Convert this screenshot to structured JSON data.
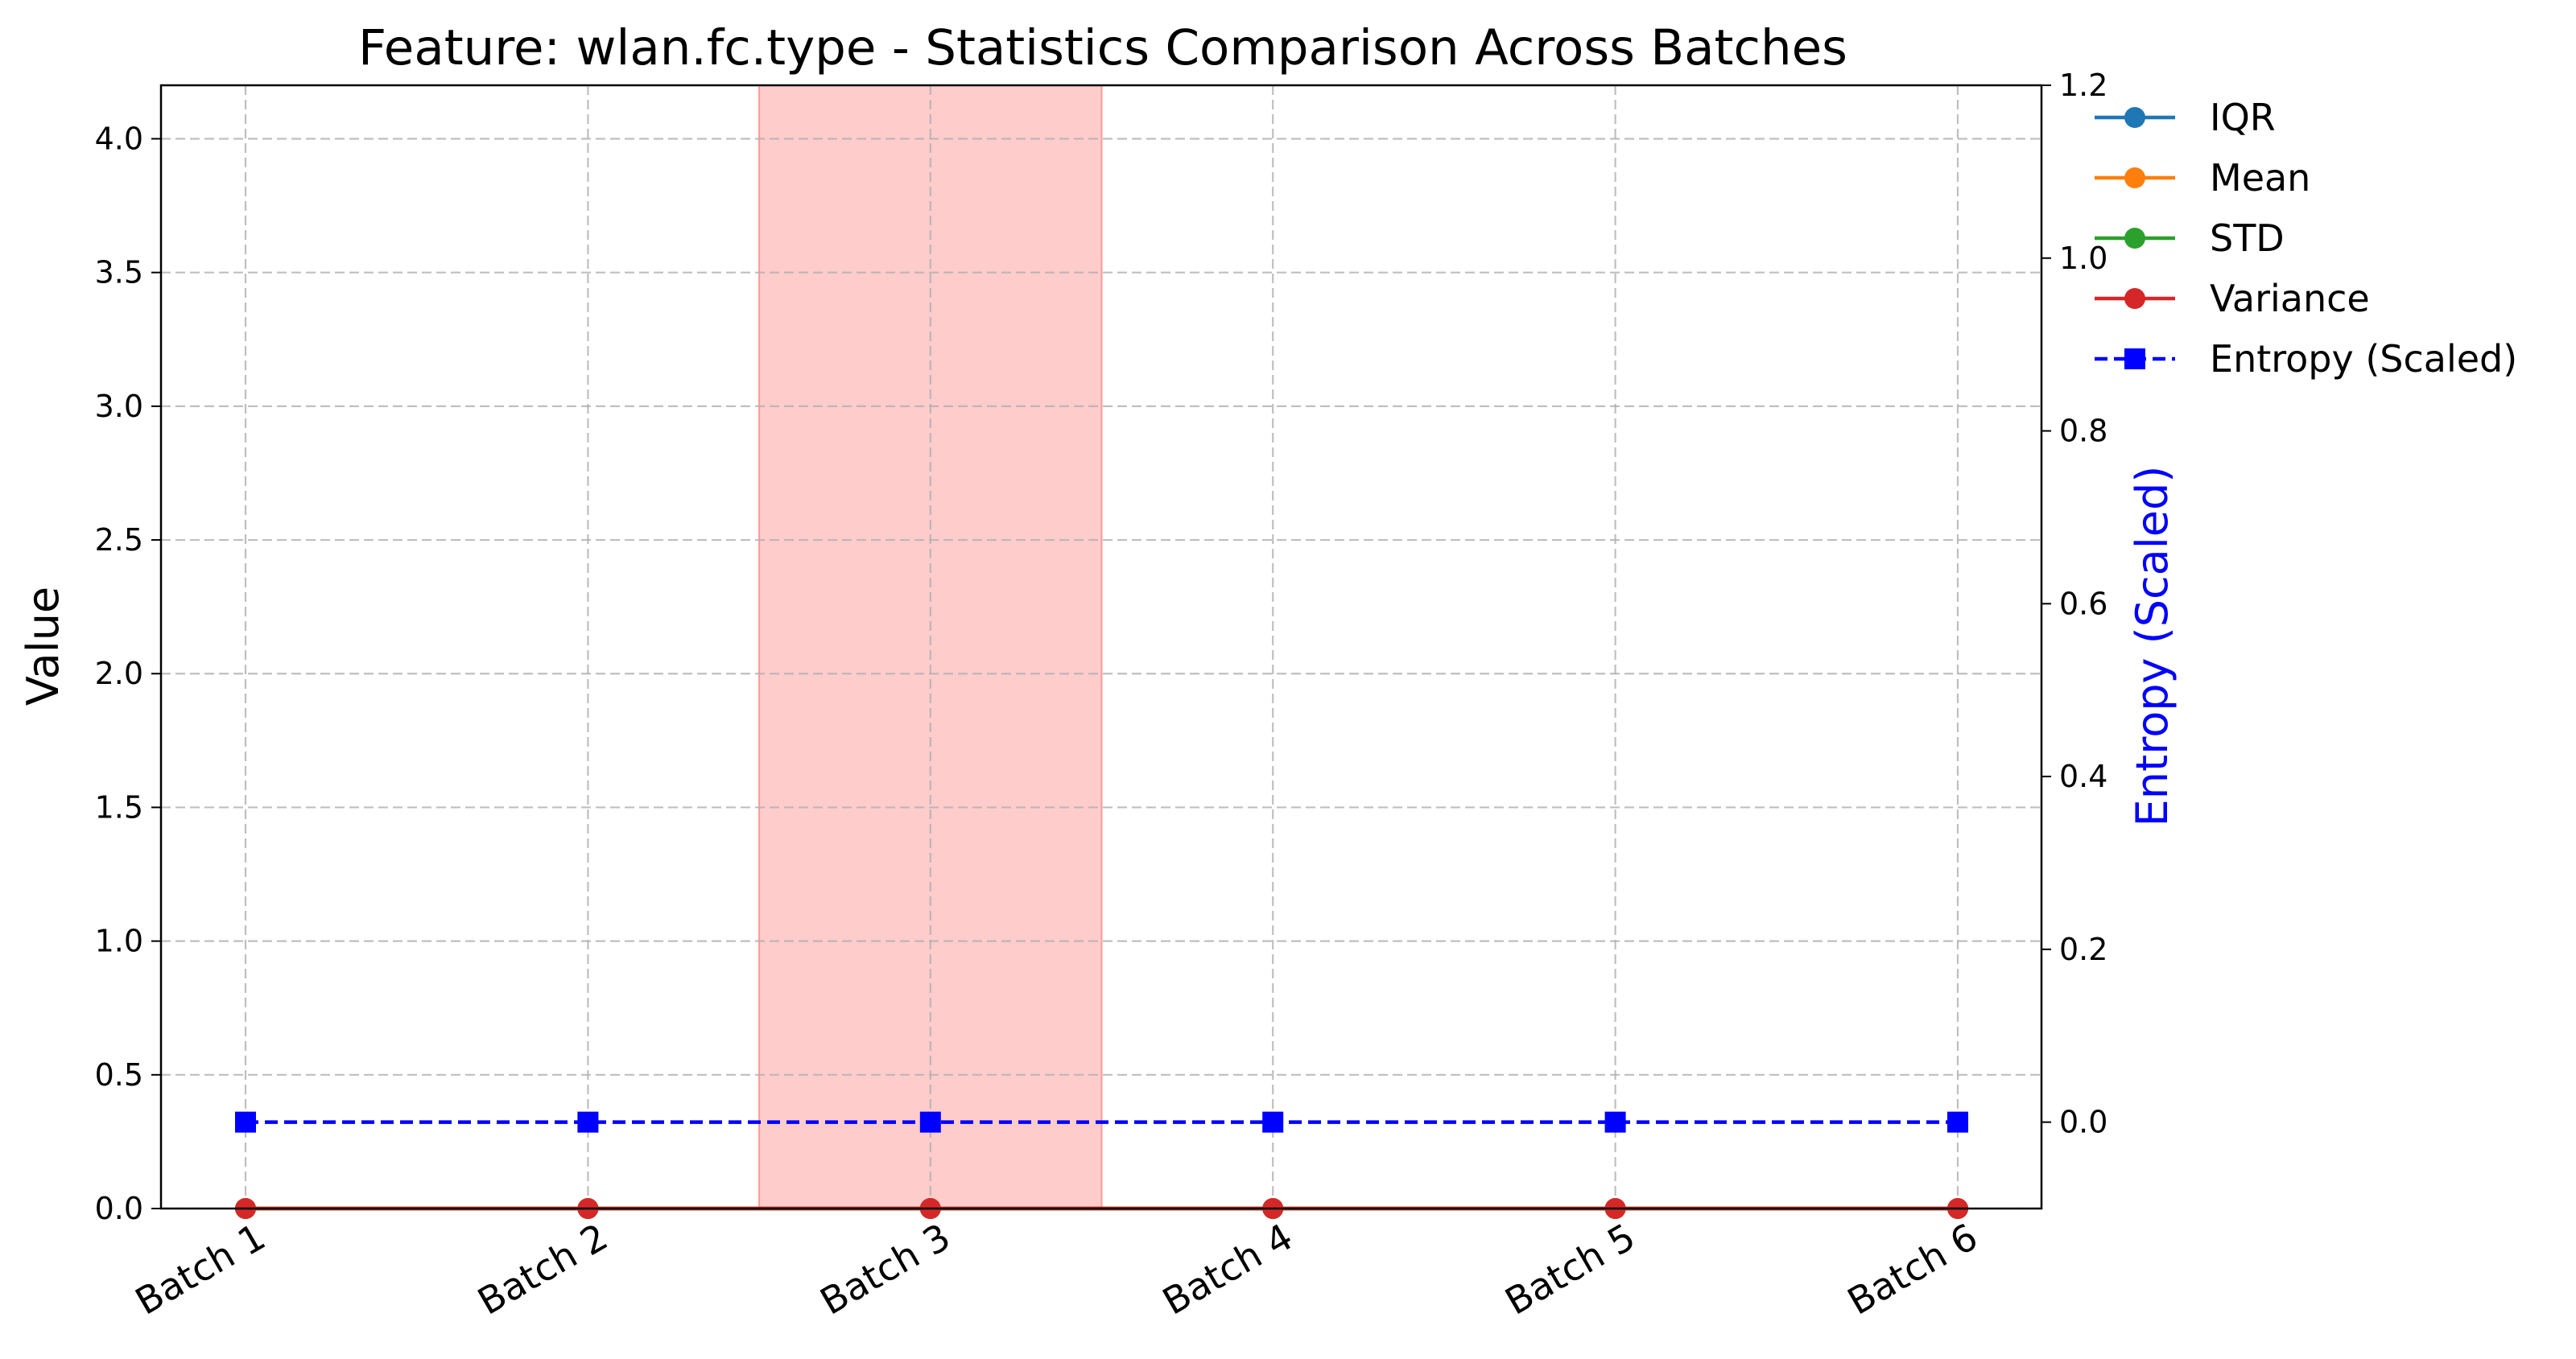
{
  "chart_data": {
    "type": "line",
    "title": "Feature: wlan.fc.type - Statistics Comparison Across Batches",
    "categories": [
      "Batch 1",
      "Batch 2",
      "Batch 3",
      "Batch 4",
      "Batch 5",
      "Batch 6"
    ],
    "ylabel": "Value",
    "ylim": [
      0,
      4.2
    ],
    "yticks": [
      "0.0",
      "0.5",
      "1.0",
      "1.5",
      "2.0",
      "2.5",
      "3.0",
      "3.5",
      "4.0"
    ],
    "y2label": "Entropy (Scaled)",
    "y2lim": [
      -0.1,
      1.2
    ],
    "y2ticks": [
      "0.0",
      "0.2",
      "0.4",
      "0.6",
      "0.8",
      "1.0",
      "1.2"
    ],
    "grid": true,
    "legend_position": "upper-right-outside",
    "highlight": {
      "category": "Batch 3",
      "color": "#ff9999"
    },
    "series": [
      {
        "name": "IQR",
        "axis": "left",
        "color": "#1f77b4",
        "marker": "circle",
        "values": [
          0,
          0,
          0,
          0,
          0,
          0
        ]
      },
      {
        "name": "Mean",
        "axis": "left",
        "color": "#ff7f0e",
        "marker": "circle",
        "values": [
          0,
          0,
          0,
          0,
          0,
          0
        ]
      },
      {
        "name": "STD",
        "axis": "left",
        "color": "#2ca02c",
        "marker": "circle",
        "values": [
          0,
          0,
          0,
          0,
          0,
          0
        ]
      },
      {
        "name": "Variance",
        "axis": "left",
        "color": "#d62728",
        "marker": "circle",
        "values": [
          0,
          0,
          0,
          0,
          0,
          0
        ]
      },
      {
        "name": "Entropy (Scaled)",
        "axis": "right",
        "color": "#0000ff",
        "marker": "square",
        "dashed": true,
        "values": [
          0,
          0,
          0,
          0,
          0,
          0
        ]
      }
    ]
  }
}
